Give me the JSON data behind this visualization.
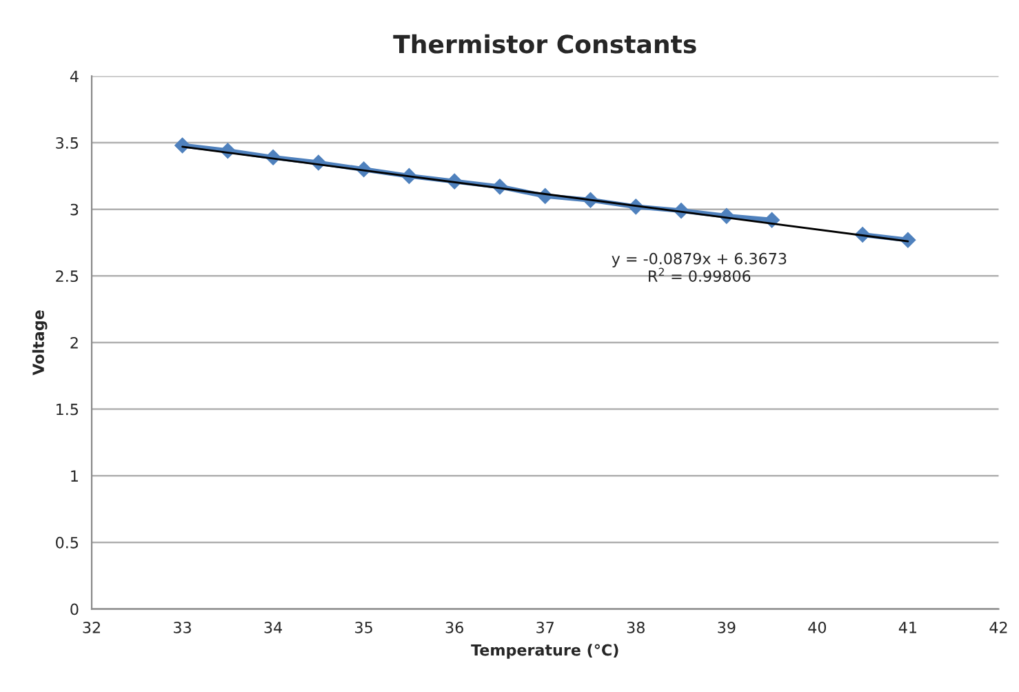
{
  "chart_data": {
    "type": "line",
    "title": "Thermistor Constants",
    "xlabel": "Temperature (°C)",
    "ylabel": "Voltage",
    "x": [
      33,
      33.5,
      34,
      34.5,
      35,
      35.5,
      36,
      36.5,
      37,
      37.5,
      38,
      38.5,
      39,
      39.5,
      40,
      40.5,
      41
    ],
    "series": [
      {
        "color": "#4f81bd",
        "marker": "diamond",
        "values": [
          3.48,
          3.44,
          3.39,
          3.35,
          3.3,
          3.25,
          3.21,
          3.17,
          3.1,
          3.07,
          3.02,
          2.99,
          2.95,
          2.92,
          null,
          2.81,
          2.77
        ]
      },
      {
        "type": "line",
        "color": "#000000",
        "marker": "none",
        "x": [
          33,
          41
        ],
        "values": [
          3.47,
          2.76
        ]
      }
    ],
    "annotations": [
      "y = -0.0879x + 6.3673",
      "R$^{2}$ = 0.99806"
    ],
    "xlim": [
      32,
      42
    ],
    "xticks": [
      32,
      33,
      34,
      35,
      36,
      37,
      38,
      39,
      40,
      41,
      42
    ],
    "ylim": [
      0,
      4
    ],
    "yticks": [
      0,
      0.5,
      1,
      1.5,
      2,
      2.5,
      3,
      3.5,
      4
    ],
    "grid": "y",
    "legend": false
  }
}
